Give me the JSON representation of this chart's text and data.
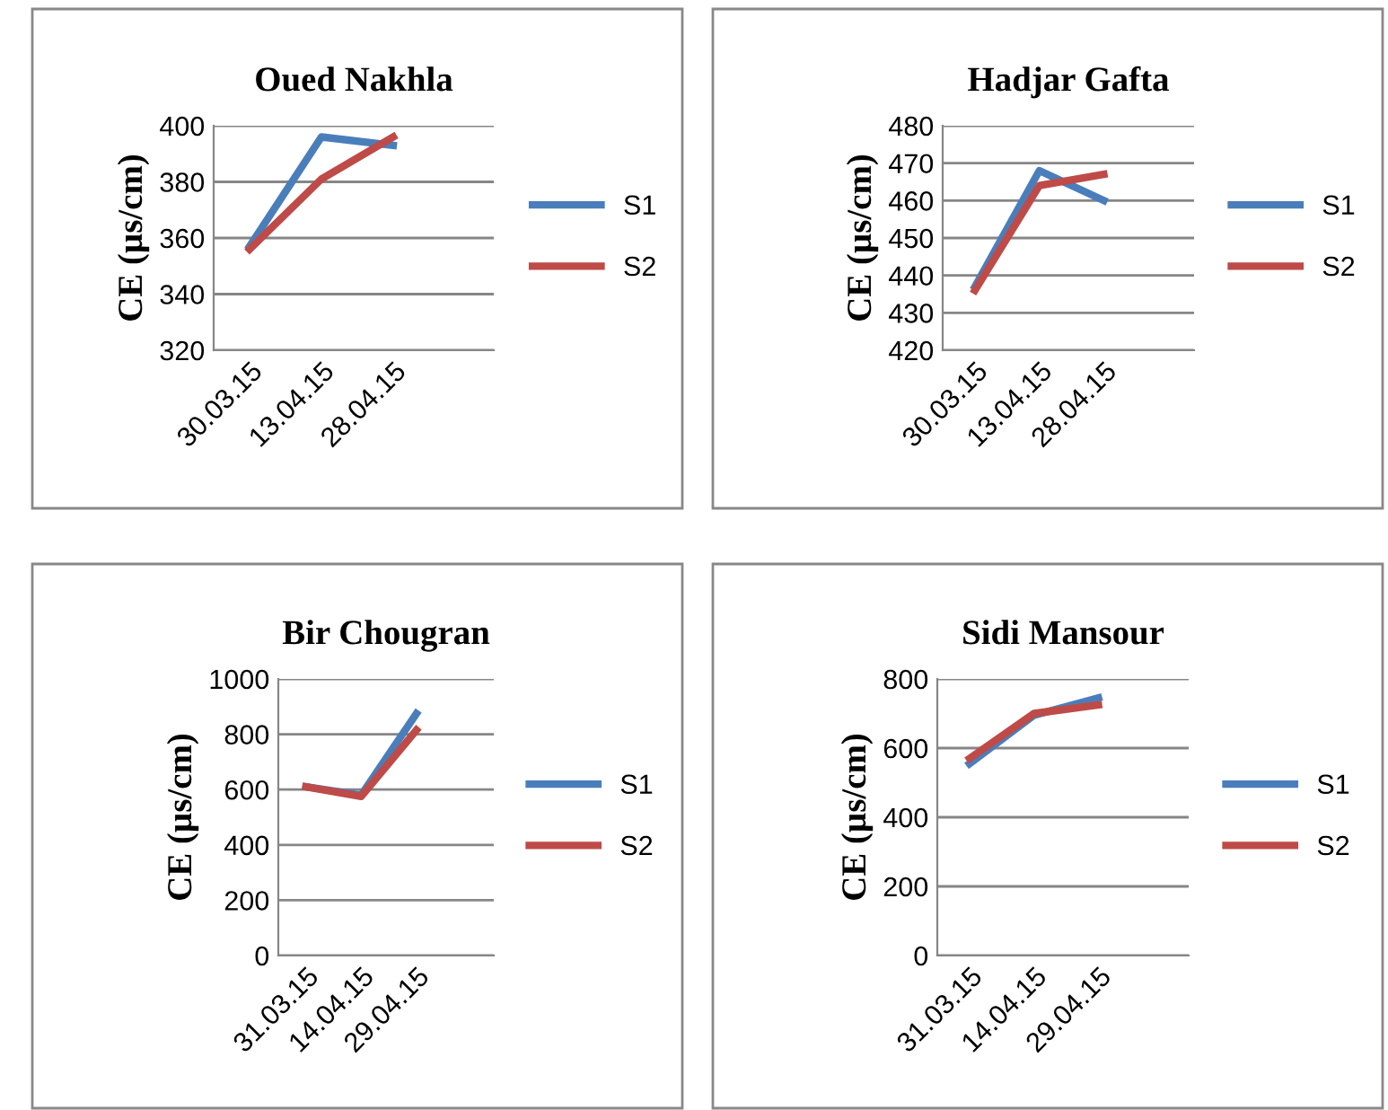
{
  "chart_data": [
    {
      "type": "line",
      "title": "Oued Nakhla",
      "ylabel": "CE (µs/cm)",
      "categories": [
        "30.03.15",
        "13.04.15",
        "28.04.15"
      ],
      "ylim": [
        320,
        400
      ],
      "yticks": [
        320,
        340,
        360,
        380,
        400
      ],
      "grid": "y",
      "legend": "right",
      "series": [
        {
          "name": "S1",
          "color": "#4a7ebb",
          "values": [
            357,
            396,
            393
          ]
        },
        {
          "name": "S2",
          "color": "#be4b48",
          "values": [
            356,
            381,
            396
          ]
        }
      ]
    },
    {
      "type": "line",
      "title": "Hadjar Gafta",
      "ylabel": "CE (µs/cm)",
      "categories": [
        "30.03.15",
        "13.04.15",
        "28.04.15"
      ],
      "ylim": [
        420,
        480
      ],
      "yticks": [
        420,
        430,
        440,
        450,
        460,
        470,
        480
      ],
      "grid": "y",
      "legend": "right",
      "series": [
        {
          "name": "S1",
          "color": "#4a7ebb",
          "values": [
            437,
            468,
            460
          ]
        },
        {
          "name": "S2",
          "color": "#be4b48",
          "values": [
            436,
            464,
            467
          ]
        }
      ]
    },
    {
      "type": "line",
      "title": "Bir Chougran",
      "ylabel": "CE (µs/cm)",
      "categories": [
        "31.03.15",
        "14.04.15",
        "29.04.15"
      ],
      "ylim": [
        0,
        1000
      ],
      "yticks": [
        0,
        200,
        400,
        600,
        800,
        1000
      ],
      "grid": "y",
      "legend": "right",
      "series": [
        {
          "name": "S1",
          "color": "#4a7ebb",
          "values": [
            610,
            580,
            875
          ]
        },
        {
          "name": "S2",
          "color": "#be4b48",
          "values": [
            610,
            575,
            815
          ]
        }
      ]
    },
    {
      "type": "line",
      "title": "Sidi Mansour",
      "ylabel": "CE (µs/cm)",
      "categories": [
        "31.03.15",
        "14.04.15",
        "29.04.15"
      ],
      "ylim": [
        0,
        800
      ],
      "yticks": [
        0,
        200,
        400,
        600,
        800
      ],
      "grid": "y",
      "legend": "right",
      "series": [
        {
          "name": "S1",
          "color": "#4a7ebb",
          "values": [
            555,
            695,
            745
          ]
        },
        {
          "name": "S2",
          "color": "#be4b48",
          "values": [
            570,
            700,
            725
          ]
        }
      ]
    }
  ]
}
